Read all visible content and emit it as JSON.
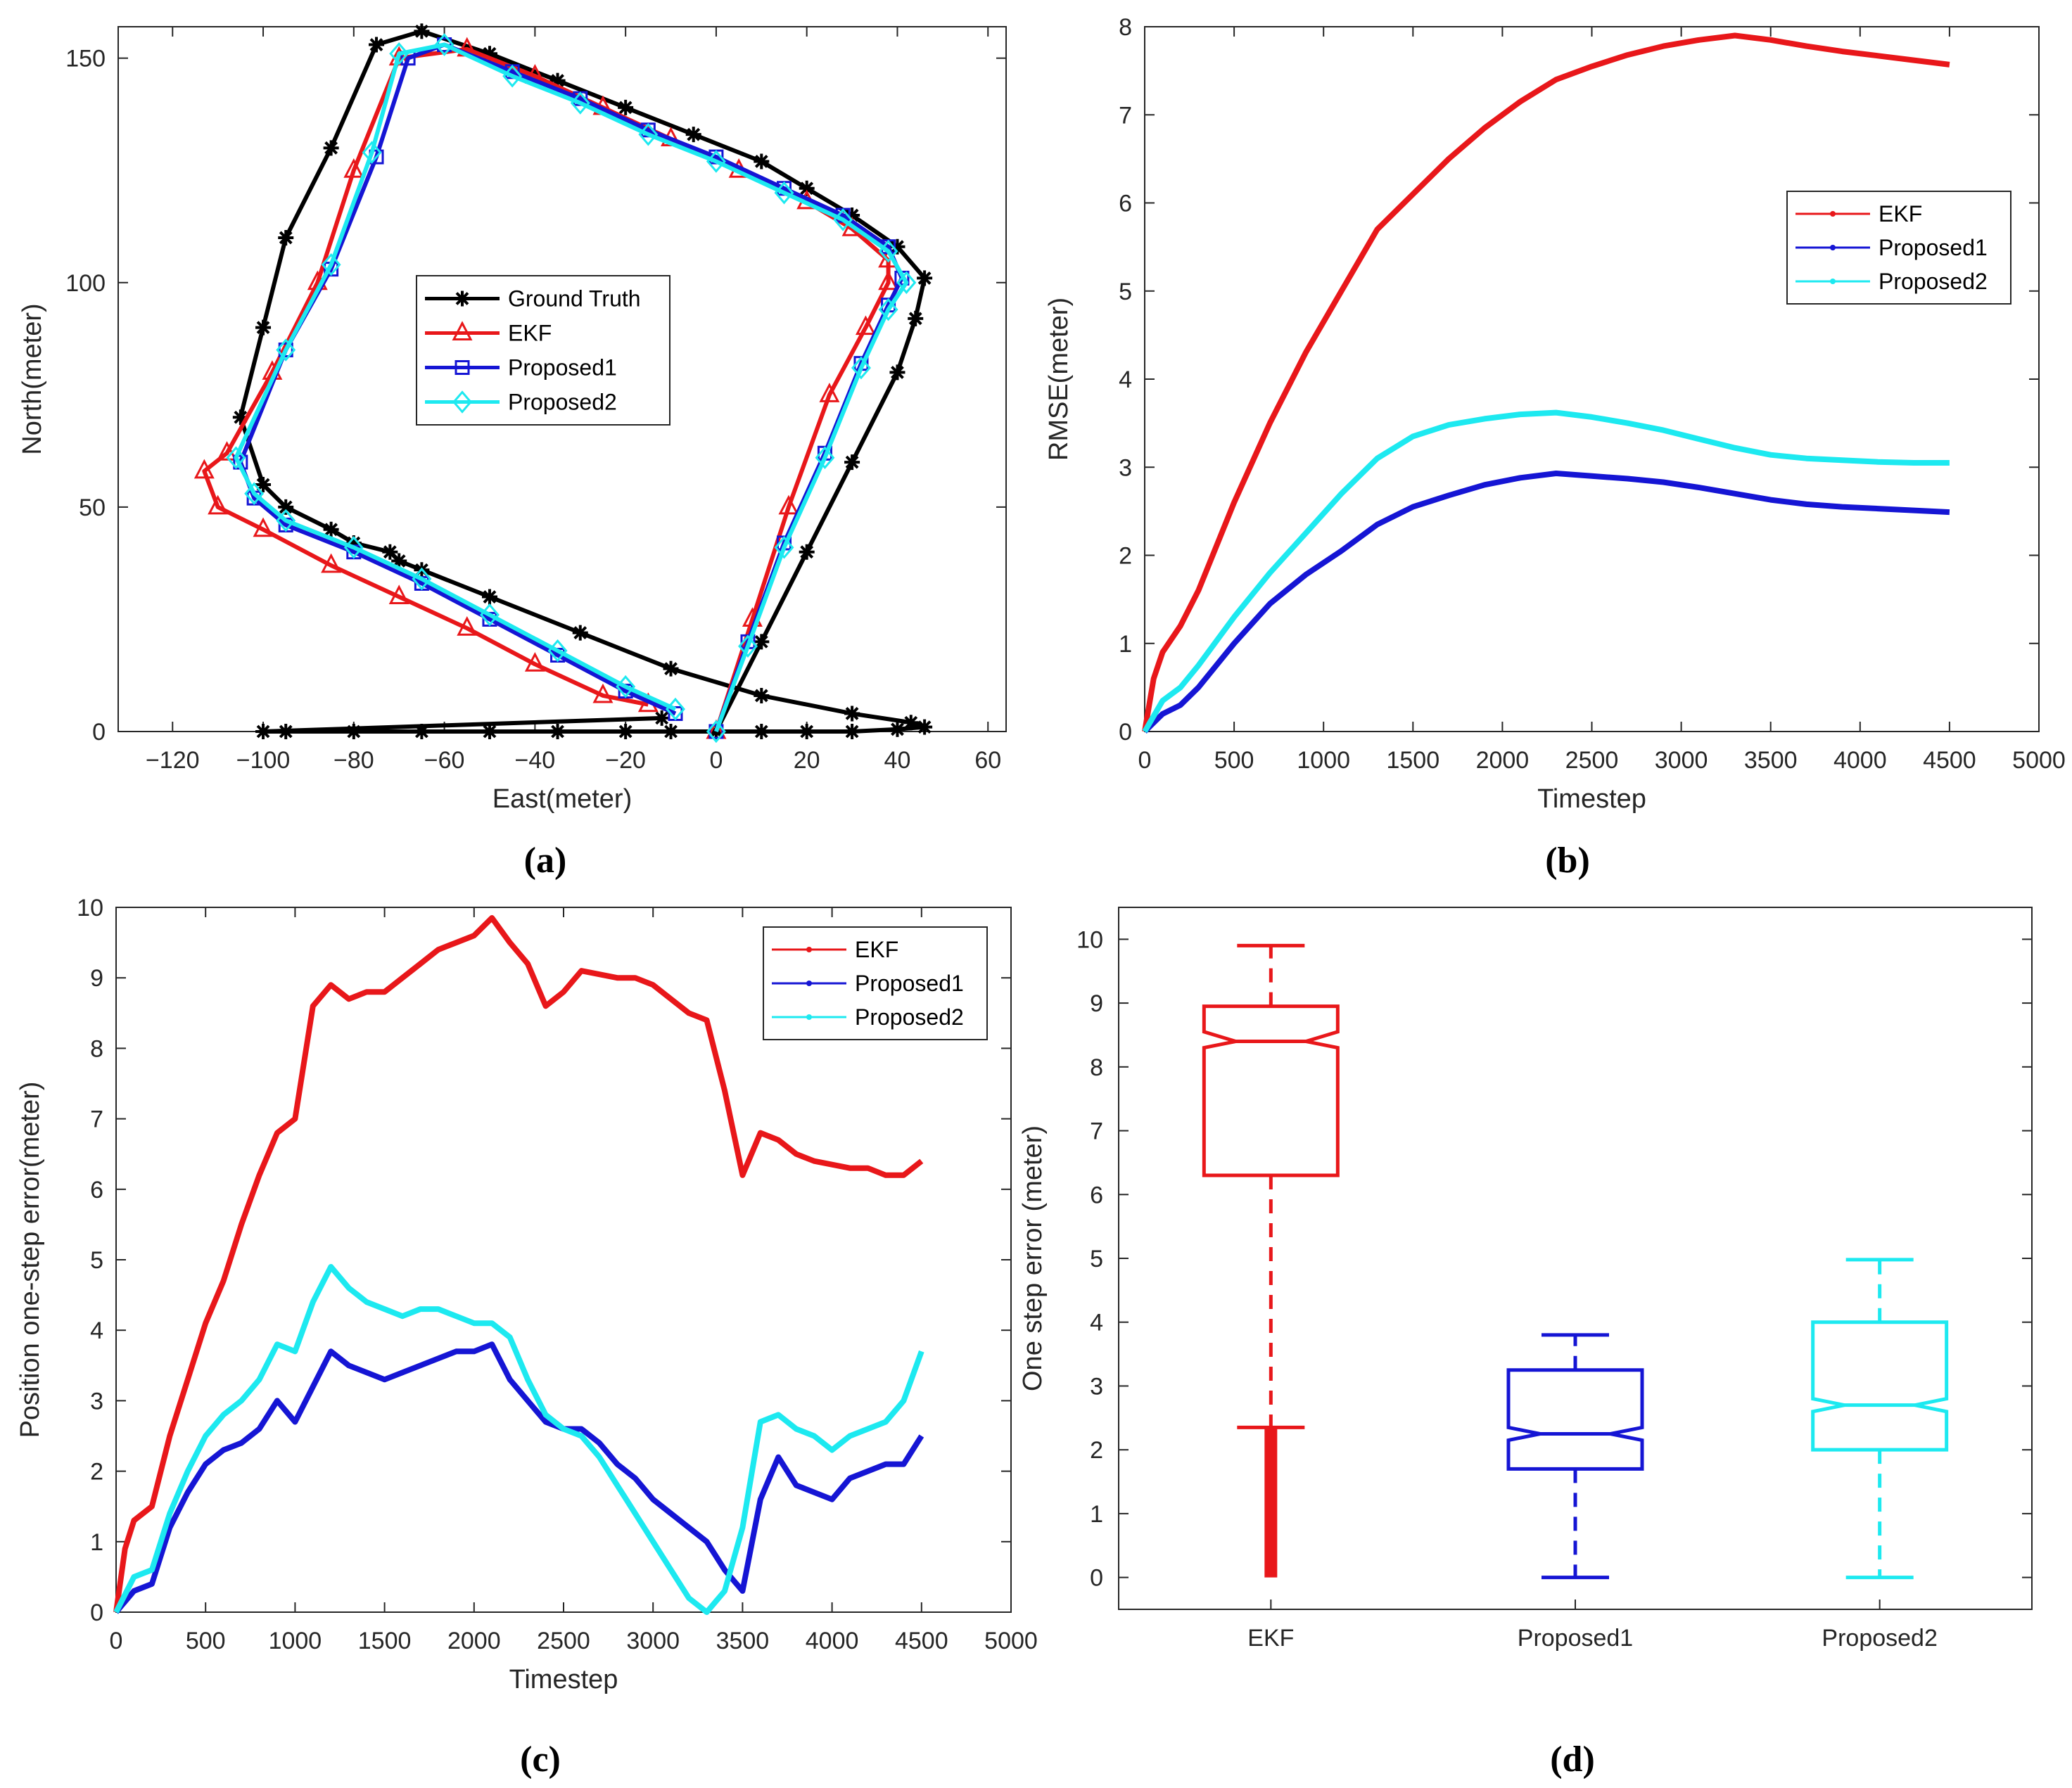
{
  "figure": {
    "captions": [
      "(a)",
      "(b)",
      "(c)",
      "(d)"
    ]
  },
  "colors": {
    "ground_truth": "#000000",
    "ekf": "#e8171a",
    "proposed1": "#1515d4",
    "proposed2": "#1de9f0",
    "axis": "#262626"
  },
  "chart_data": [
    {
      "id": "a",
      "type": "line",
      "caption": "(a)",
      "xlabel": "East(meter)",
      "ylabel": "North(meter)",
      "xlim": [
        -132,
        64
      ],
      "ylim": [
        0,
        157
      ],
      "xticks": [
        -120,
        -100,
        -80,
        -60,
        -40,
        -20,
        0,
        20,
        40,
        60
      ],
      "xtick_labels": [
        "−120",
        "−100",
        "−80",
        "−60",
        "−40",
        "−20",
        "0",
        "20",
        "40",
        "60"
      ],
      "yticks": [
        0,
        50,
        100,
        150
      ],
      "ytick_labels": [
        "0",
        "50",
        "100",
        "150"
      ],
      "legend": {
        "position": "center",
        "entries": [
          "Ground Truth",
          "EKF",
          "Proposed1",
          "Proposed2"
        ]
      },
      "series": [
        {
          "name": "Ground Truth",
          "marker": "asterisk",
          "x": [
            0,
            10,
            20,
            30,
            40,
            44,
            46,
            40,
            30,
            20,
            10,
            -5,
            -20,
            -35,
            -50,
            -65,
            -75,
            -85,
            -95,
            -100,
            -105,
            -100,
            -95,
            -85,
            -80,
            -72,
            -70,
            -65,
            -50,
            -30,
            -10,
            10,
            30,
            43,
            46,
            40,
            30,
            20,
            10,
            0,
            -10,
            -20,
            -35,
            -50,
            -65,
            -80,
            -95,
            -100,
            -12
          ],
          "y": [
            0,
            20,
            40,
            60,
            80,
            92,
            101,
            108,
            115,
            121,
            127,
            133,
            139,
            145,
            151,
            156,
            153,
            130,
            110,
            90,
            70,
            55,
            50,
            45,
            42,
            40,
            38,
            36,
            30,
            22,
            14,
            8,
            4,
            2,
            1,
            0.5,
            0,
            0,
            0,
            0,
            0,
            0,
            0,
            0,
            0,
            0,
            0,
            0,
            3
          ]
        },
        {
          "name": "EKF",
          "marker": "triangle",
          "x": [
            0,
            8,
            16,
            25,
            33,
            38,
            38,
            30,
            20,
            5,
            -10,
            -25,
            -40,
            -55,
            -70,
            -80,
            -88,
            -98,
            -108,
            -113,
            -110,
            -100,
            -85,
            -70,
            -55,
            -40,
            -25,
            -15
          ],
          "y": [
            0,
            25,
            50,
            75,
            90,
            100,
            105,
            112,
            118,
            125,
            132,
            139,
            146,
            152,
            150,
            125,
            100,
            80,
            62,
            58,
            50,
            45,
            37,
            30,
            23,
            15,
            8,
            6
          ]
        },
        {
          "name": "Proposed1",
          "marker": "square",
          "x": [
            0,
            7,
            15,
            24,
            32,
            38,
            41,
            38,
            28,
            15,
            0,
            -15,
            -30,
            -45,
            -60,
            -68,
            -75,
            -85,
            -95,
            -105,
            -102,
            -95,
            -80,
            -65,
            -50,
            -35,
            -20,
            -9
          ],
          "y": [
            0,
            20,
            42,
            62,
            82,
            95,
            101,
            108,
            115,
            121,
            128,
            134,
            141,
            147,
            153,
            150,
            128,
            103,
            85,
            60,
            52,
            46,
            40,
            33,
            25,
            17,
            9,
            4
          ]
        },
        {
          "name": "Proposed2",
          "marker": "diamond",
          "x": [
            0,
            7,
            15,
            24,
            32,
            38,
            42,
            38,
            28,
            15,
            0,
            -15,
            -30,
            -45,
            -60,
            -70,
            -76,
            -85,
            -95,
            -106,
            -102,
            -95,
            -80,
            -65,
            -50,
            -35,
            -20,
            -9
          ],
          "y": [
            0,
            19,
            41,
            61,
            81,
            94,
            100,
            107,
            114,
            120,
            127,
            133,
            140,
            146,
            153,
            151,
            129,
            104,
            85,
            61,
            53,
            47,
            41,
            34,
            26,
            18,
            10,
            5
          ]
        }
      ]
    },
    {
      "id": "b",
      "type": "line",
      "caption": "(b)",
      "xlabel": "Timestep",
      "ylabel": "RMSE(meter)",
      "xlim": [
        0,
        5000
      ],
      "ylim": [
        0,
        8
      ],
      "xticks": [
        0,
        500,
        1000,
        1500,
        2000,
        2500,
        3000,
        3500,
        4000,
        4500,
        5000
      ],
      "xtick_labels": [
        "0",
        "500",
        "1000",
        "1500",
        "2000",
        "2500",
        "3000",
        "3500",
        "4000",
        "4500",
        "5000"
      ],
      "yticks": [
        0,
        1,
        2,
        3,
        4,
        5,
        6,
        7,
        8
      ],
      "ytick_labels": [
        "0",
        "1",
        "2",
        "3",
        "4",
        "5",
        "6",
        "7",
        "8"
      ],
      "legend": {
        "position": "top-right",
        "entries": [
          "EKF",
          "Proposed1",
          "Proposed2"
        ]
      },
      "series": [
        {
          "name": "EKF",
          "x": [
            0,
            50,
            100,
            200,
            300,
            500,
            700,
            900,
            1100,
            1300,
            1500,
            1700,
            1900,
            2100,
            2300,
            2500,
            2700,
            2900,
            3100,
            3300,
            3500,
            3700,
            3900,
            4100,
            4300,
            4500
          ],
          "y": [
            0,
            0.6,
            0.9,
            1.2,
            1.6,
            2.6,
            3.5,
            4.3,
            5.0,
            5.7,
            6.1,
            6.5,
            6.85,
            7.15,
            7.4,
            7.55,
            7.68,
            7.78,
            7.85,
            7.9,
            7.85,
            7.78,
            7.72,
            7.67,
            7.62,
            7.57
          ]
        },
        {
          "name": "Proposed1",
          "x": [
            0,
            100,
            200,
            300,
            500,
            700,
            900,
            1100,
            1300,
            1500,
            1700,
            1900,
            2100,
            2300,
            2500,
            2700,
            2900,
            3100,
            3300,
            3500,
            3700,
            3900,
            4100,
            4300,
            4500
          ],
          "y": [
            0,
            0.2,
            0.3,
            0.5,
            1.0,
            1.45,
            1.78,
            2.05,
            2.35,
            2.55,
            2.68,
            2.8,
            2.88,
            2.93,
            2.9,
            2.87,
            2.83,
            2.77,
            2.7,
            2.63,
            2.58,
            2.55,
            2.53,
            2.51,
            2.49
          ]
        },
        {
          "name": "Proposed2",
          "x": [
            0,
            100,
            200,
            300,
            500,
            700,
            900,
            1100,
            1300,
            1500,
            1700,
            1900,
            2100,
            2300,
            2500,
            2700,
            2900,
            3100,
            3300,
            3500,
            3700,
            3900,
            4100,
            4300,
            4500
          ],
          "y": [
            0,
            0.35,
            0.5,
            0.75,
            1.3,
            1.8,
            2.25,
            2.7,
            3.1,
            3.35,
            3.48,
            3.55,
            3.6,
            3.62,
            3.57,
            3.5,
            3.42,
            3.32,
            3.22,
            3.14,
            3.1,
            3.08,
            3.06,
            3.05,
            3.05
          ]
        }
      ]
    },
    {
      "id": "c",
      "type": "line",
      "caption": "(c)",
      "xlabel": "Timestep",
      "ylabel": "Position one-step error(meter)",
      "xlim": [
        0,
        5000
      ],
      "ylim": [
        0,
        10
      ],
      "xticks": [
        0,
        500,
        1000,
        1500,
        2000,
        2500,
        3000,
        3500,
        4000,
        4500,
        5000
      ],
      "xtick_labels": [
        "0",
        "500",
        "1000",
        "1500",
        "2000",
        "2500",
        "3000",
        "3500",
        "4000",
        "4500",
        "5000"
      ],
      "yticks": [
        0,
        1,
        2,
        3,
        4,
        5,
        6,
        7,
        8,
        9,
        10
      ],
      "ytick_labels": [
        "0",
        "1",
        "2",
        "3",
        "4",
        "5",
        "6",
        "7",
        "8",
        "9",
        "10"
      ],
      "legend": {
        "position": "top-right",
        "entries": [
          "EKF",
          "Proposed1",
          "Proposed2"
        ]
      },
      "series": [
        {
          "name": "EKF",
          "x": [
            0,
            50,
            100,
            200,
            300,
            400,
            500,
            600,
            700,
            800,
            900,
            1000,
            1100,
            1200,
            1300,
            1400,
            1500,
            1600,
            1700,
            1800,
            1900,
            2000,
            2100,
            2200,
            2300,
            2400,
            2500,
            2600,
            2700,
            2800,
            2900,
            3000,
            3100,
            3200,
            3300,
            3400,
            3500,
            3600,
            3700,
            3800,
            3900,
            4000,
            4100,
            4200,
            4300,
            4400,
            4500
          ],
          "y": [
            0,
            0.9,
            1.3,
            1.5,
            2.5,
            3.3,
            4.1,
            4.7,
            5.5,
            6.2,
            6.8,
            7.0,
            8.6,
            8.9,
            8.7,
            8.8,
            8.8,
            9.0,
            9.2,
            9.4,
            9.5,
            9.6,
            9.85,
            9.5,
            9.2,
            8.6,
            8.8,
            9.1,
            9.05,
            9.0,
            9.0,
            8.9,
            8.7,
            8.5,
            8.4,
            7.4,
            6.2,
            6.8,
            6.7,
            6.5,
            6.4,
            6.35,
            6.3,
            6.3,
            6.2,
            6.2,
            6.4
          ]
        },
        {
          "name": "Proposed1",
          "x": [
            0,
            100,
            200,
            300,
            400,
            500,
            600,
            700,
            800,
            900,
            1000,
            1100,
            1200,
            1300,
            1400,
            1500,
            1600,
            1700,
            1800,
            1900,
            2000,
            2100,
            2200,
            2300,
            2400,
            2500,
            2600,
            2700,
            2800,
            2900,
            3000,
            3100,
            3200,
            3300,
            3400,
            3500,
            3600,
            3700,
            3800,
            3900,
            4000,
            4100,
            4200,
            4300,
            4400,
            4500
          ],
          "y": [
            0,
            0.3,
            0.4,
            1.2,
            1.7,
            2.1,
            2.3,
            2.4,
            2.6,
            3.0,
            2.7,
            3.2,
            3.7,
            3.5,
            3.4,
            3.3,
            3.4,
            3.5,
            3.6,
            3.7,
            3.7,
            3.8,
            3.3,
            3.0,
            2.7,
            2.6,
            2.6,
            2.4,
            2.1,
            1.9,
            1.6,
            1.4,
            1.2,
            1.0,
            0.6,
            0.3,
            1.6,
            2.2,
            1.8,
            1.7,
            1.6,
            1.9,
            2.0,
            2.1,
            2.1,
            2.5
          ]
        },
        {
          "name": "Proposed2",
          "x": [
            0,
            100,
            200,
            300,
            400,
            500,
            600,
            700,
            800,
            900,
            1000,
            1100,
            1200,
            1300,
            1400,
            1500,
            1600,
            1700,
            1800,
            1900,
            2000,
            2100,
            2200,
            2300,
            2400,
            2500,
            2600,
            2700,
            2800,
            2900,
            3000,
            3100,
            3200,
            3300,
            3400,
            3500,
            3600,
            3700,
            3800,
            3900,
            4000,
            4100,
            4200,
            4300,
            4400,
            4500
          ],
          "y": [
            0,
            0.5,
            0.6,
            1.4,
            2.0,
            2.5,
            2.8,
            3.0,
            3.3,
            3.8,
            3.7,
            4.4,
            4.9,
            4.6,
            4.4,
            4.3,
            4.2,
            4.3,
            4.3,
            4.2,
            4.1,
            4.1,
            3.9,
            3.3,
            2.8,
            2.6,
            2.5,
            2.2,
            1.8,
            1.4,
            1.0,
            0.6,
            0.2,
            0.0,
            0.3,
            1.2,
            2.7,
            2.8,
            2.6,
            2.5,
            2.3,
            2.5,
            2.6,
            2.7,
            3.0,
            3.7
          ]
        }
      ]
    },
    {
      "id": "d",
      "type": "box",
      "caption": "(d)",
      "xlabel": "",
      "ylabel": "One step error (meter)",
      "ylim": [
        -0.5,
        10.5
      ],
      "yticks": [
        0,
        1,
        2,
        3,
        4,
        5,
        6,
        7,
        8,
        9,
        10
      ],
      "ytick_labels": [
        "0",
        "1",
        "2",
        "3",
        "4",
        "5",
        "6",
        "7",
        "8",
        "9",
        "10"
      ],
      "categories": [
        "EKF",
        "Proposed1",
        "Proposed2"
      ],
      "boxes": [
        {
          "name": "EKF",
          "q1": 6.3,
          "median": 8.4,
          "q3": 8.95,
          "whisker_low": 2.35,
          "whisker_high": 9.9,
          "notch_low": 8.3,
          "notch_high": 8.55,
          "outliers_range": [
            0,
            2.35
          ]
        },
        {
          "name": "Proposed1",
          "q1": 1.7,
          "median": 2.25,
          "q3": 3.25,
          "whisker_low": 0,
          "whisker_high": 3.8,
          "notch_low": 2.15,
          "notch_high": 2.35
        },
        {
          "name": "Proposed2",
          "q1": 2.0,
          "median": 2.7,
          "q3": 4.0,
          "whisker_low": 0,
          "whisker_high": 4.98,
          "notch_low": 2.6,
          "notch_high": 2.8
        }
      ]
    }
  ]
}
